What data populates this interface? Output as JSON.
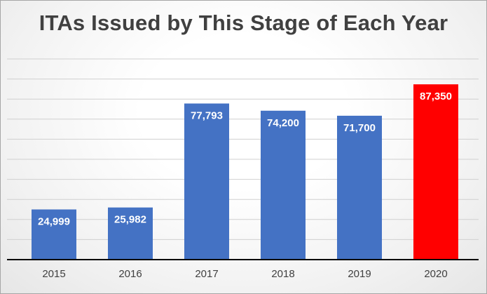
{
  "chart_data": {
    "type": "bar",
    "title": "ITAs Issued by This Stage of Each Year",
    "categories": [
      "2015",
      "2016",
      "2017",
      "2018",
      "2019",
      "2020"
    ],
    "values": [
      24999,
      25982,
      77793,
      74200,
      71700,
      87350
    ],
    "value_labels": [
      "24,999",
      "25,982",
      "77,793",
      "74,200",
      "71,700",
      "87,350"
    ],
    "colors": [
      "#4472C4",
      "#4472C4",
      "#4472C4",
      "#4472C4",
      "#4472C4",
      "#FF0000"
    ],
    "ylim": [
      0,
      100000
    ],
    "y_gridlines": true,
    "y_tick_labels_shown": false,
    "legend": "none"
  }
}
